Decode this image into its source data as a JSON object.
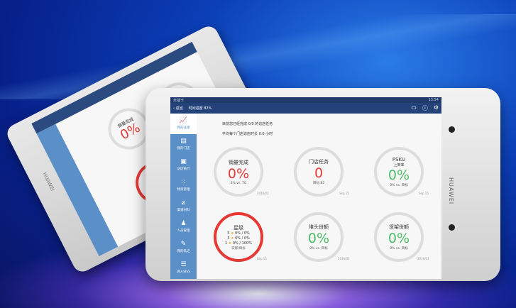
{
  "device": {
    "brand": "HUAWEI"
  },
  "status_bar": {
    "carrier": "未插卡",
    "time": "13:54"
  },
  "header": {
    "back_label": "返回",
    "title": "时间进度 82%",
    "icons": [
      "message-icon",
      "help-icon",
      "gear-icon"
    ]
  },
  "sidebar": {
    "items": [
      {
        "label": "我的业绩",
        "icon": "chart-icon",
        "active": true
      },
      {
        "label": "我的门店",
        "icon": "store-icon"
      },
      {
        "label": "访店执行",
        "icon": "clipboard-icon"
      },
      {
        "label": "物资管理",
        "icon": "grid-icon"
      },
      {
        "label": "渠道材料",
        "icon": "paperclip-icon"
      },
      {
        "label": "人员管理",
        "icon": "people-icon"
      },
      {
        "label": "我的笔记",
        "icon": "note-icon"
      },
      {
        "label": "进入SISS",
        "icon": "list-icon"
      }
    ]
  },
  "summary": {
    "line1": "目前您已经完成 0/0 的访店任务",
    "line2": "平均每个门店访店时长 0.0 小时"
  },
  "cards": [
    {
      "title": "销量完成",
      "value": "0%",
      "sub": "0% vs. TG",
      "date": "2016/02",
      "color": "#e53935"
    },
    {
      "title": "门店任务",
      "value": "0",
      "sub": "目标:85",
      "date": "Sep 15",
      "color": "#e53935"
    },
    {
      "title": "PSKU",
      "subtitle": "上架率",
      "value": "0%",
      "sub": "0% vs. 目标",
      "date": "Sep 15",
      "color": "#4cbb63"
    },
    {
      "title": "星级",
      "stars": [
        {
          "n": "5",
          "v": "0% / 0%"
        },
        {
          "n": "3",
          "v": "0% / 0%"
        },
        {
          "n": "1",
          "v": "0% / 100%"
        }
      ],
      "sub": "实际/目标",
      "date": "Sep 15",
      "ring": "#e53935"
    },
    {
      "title": "堆头份额",
      "value": "0%",
      "sub": "0% vs. 目标",
      "date": "2016/02",
      "color": "#4cbb63"
    },
    {
      "title": "货架份额",
      "value": "0%",
      "sub": "0% vs. 目标",
      "date": "2016/02",
      "color": "#4cbb63"
    }
  ]
}
